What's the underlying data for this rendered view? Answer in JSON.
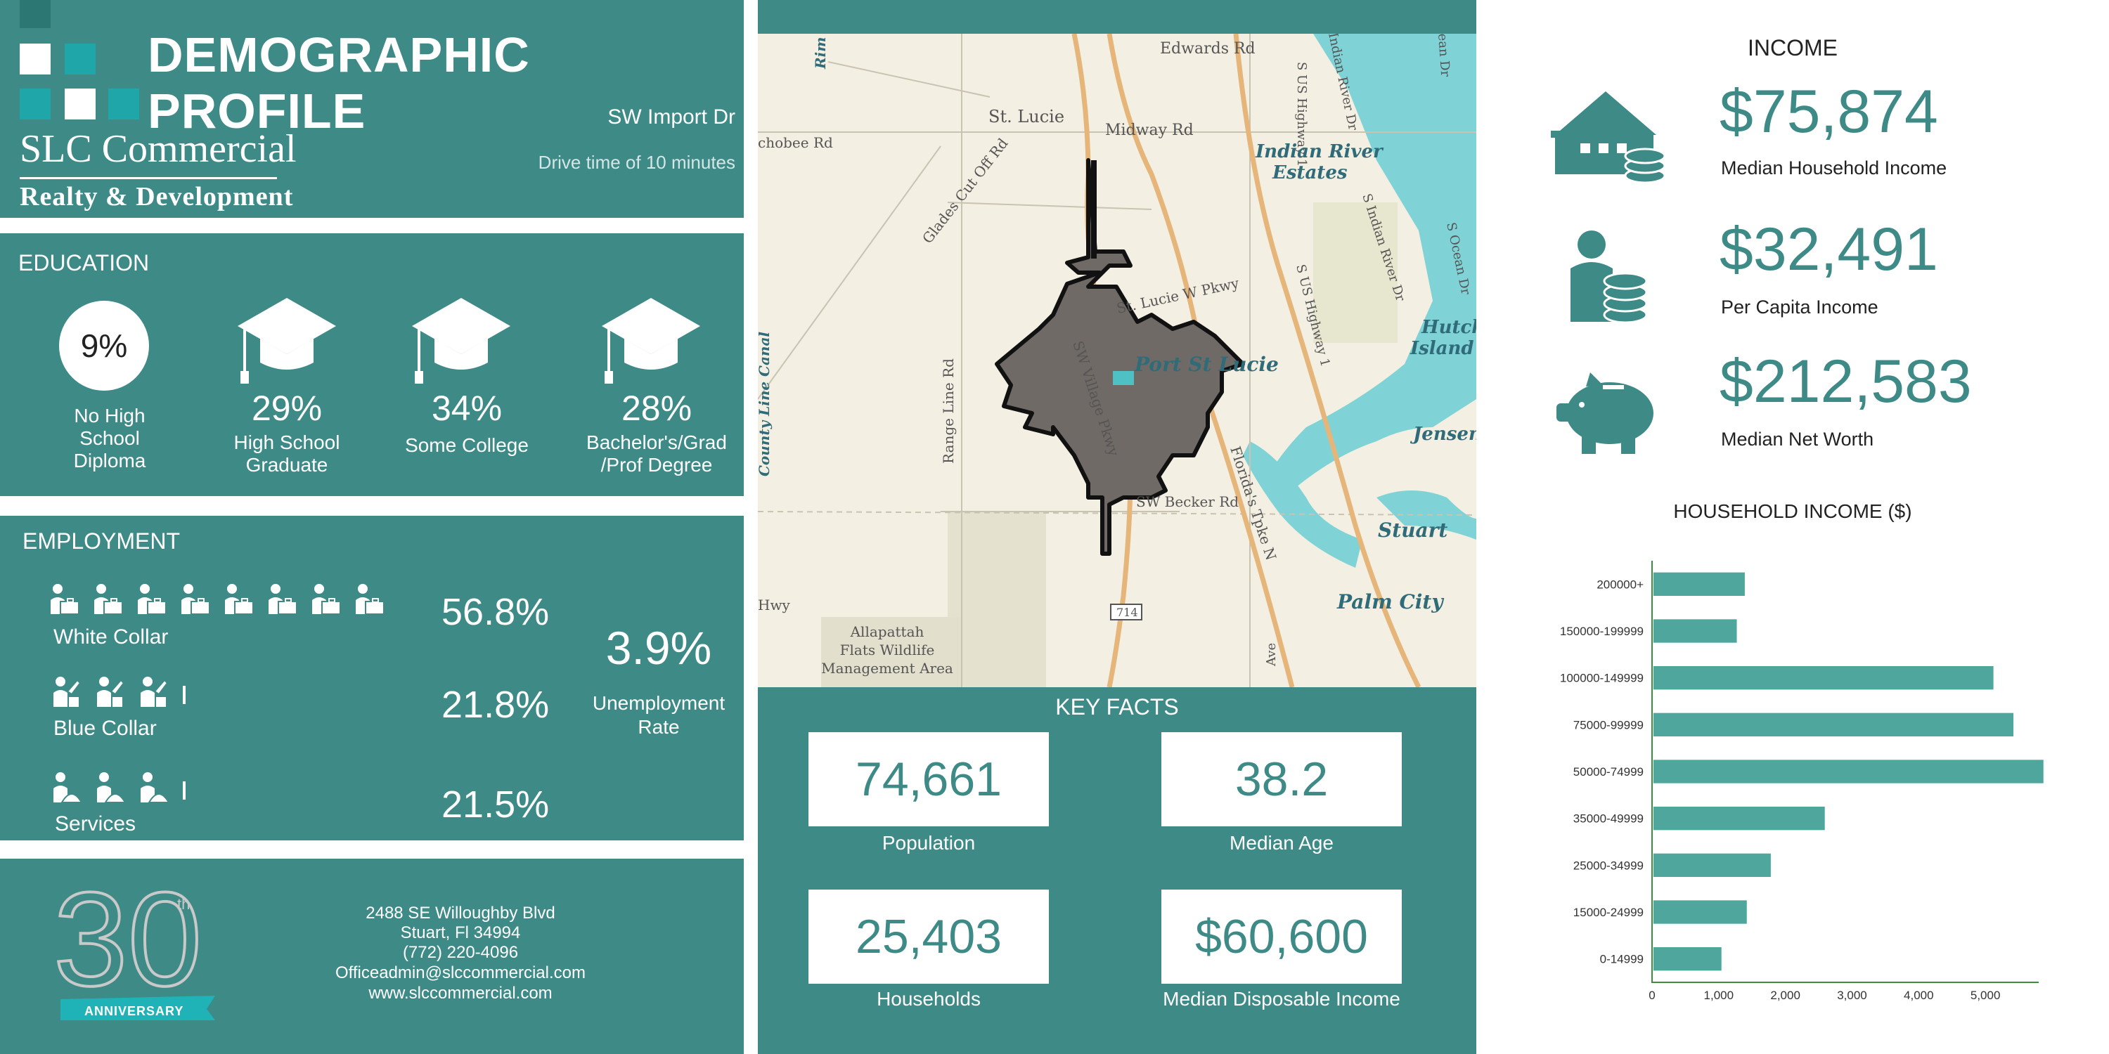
{
  "header": {
    "title": "DEMOGRAPHIC PROFILE",
    "address": "SW Import Dr",
    "drive_time": "Drive time of 10 minutes",
    "brand_name": "SLC Commercial",
    "brand_sub": "Realty & Development"
  },
  "education": {
    "title": "EDUCATION",
    "items": [
      {
        "pct": "9%",
        "label_1": "No High",
        "label_2": "School",
        "label_3": "Diploma"
      },
      {
        "pct": "29%",
        "label_1": "High School",
        "label_2": "Graduate"
      },
      {
        "pct": "34%",
        "label_1": "Some College"
      },
      {
        "pct": "28%",
        "label_1": "Bachelor's/Grad",
        "label_2": "/Prof Degree"
      }
    ]
  },
  "employment": {
    "title": "EMPLOYMENT",
    "white_collar": {
      "label": "White Collar",
      "pct": "56.8%"
    },
    "blue_collar": {
      "label": "Blue Collar",
      "pct": "21.8%"
    },
    "services": {
      "label": "Services",
      "pct": "21.5%"
    },
    "unemployment": {
      "pct": "3.9%",
      "label_1": "Unemployment",
      "label_2": "Rate"
    }
  },
  "footer": {
    "street": "2488 SE Willoughby Blvd",
    "city": "Stuart, Fl 34994",
    "phone": "(772) 220-4096",
    "email": "Officeadmin@slccommercial.com",
    "web": "www.slccommercial.com",
    "anniv_number": "30",
    "anniv_sup": "th",
    "anniv_label": "ANNIVERSARY"
  },
  "map": {
    "labels": {
      "edwards": "Edwards Rd",
      "st_lucie": "St. Lucie",
      "midway": "Midway Rd",
      "okeechobee": "chobee Rd",
      "glades": "Glades Cut Off Rd",
      "indian_river_estates_1": "Indian River",
      "indian_river_estates_2": "Estates",
      "range_line": "Range Line Rd",
      "county_line": "County Line Canal",
      "port_st_lucie": "Port St Lucie",
      "becker": "SW Becker Rd",
      "floridas_tpke": "Florida's Tpke N",
      "hutch_1": "Hutch",
      "hutch_2": "Island S",
      "jensen": "Jensen B",
      "stuart": "Stuart",
      "palm_city": "Palm City",
      "allapattah_1": "Allapattah",
      "allapattah_2": "Flats Wildlife",
      "allapattah_3": "Management Area",
      "hwy": "Hwy",
      "route_714": "714",
      "us_hwy_1": "S US Highway 1",
      "us_hwy_1b": "S US Highway 1",
      "indian_river_dr": "S Indian River Dr",
      "indian_river_dr_top": "Indian River Dr",
      "ocean_dr": "S Ocean Dr",
      "village_pkwy": "SW Village Pkwy",
      "st_lucie_pkwy": "St. Lucie W Pkwy",
      "rim": "Rim",
      "ave": "Ave",
      "ocean_top": "ean Dr"
    }
  },
  "key_facts": {
    "title": "KEY FACTS",
    "population": {
      "value": "74,661",
      "label": "Population"
    },
    "median_age": {
      "value": "38.2",
      "label": "Median Age"
    },
    "households": {
      "value": "25,403",
      "label": "Households"
    },
    "disposable": {
      "value": "$60,600",
      "label": "Median Disposable Income"
    }
  },
  "income": {
    "title": "INCOME",
    "median_household": {
      "value": "$75,874",
      "label": "Median Household Income"
    },
    "per_capita": {
      "value": "$32,491",
      "label": "Per Capita Income"
    },
    "net_worth": {
      "value": "$212,583",
      "label": "Median Net Worth"
    }
  },
  "chart_data": {
    "type": "bar",
    "orientation": "horizontal",
    "title": "HOUSEHOLD INCOME ($)",
    "categories": [
      "200000+",
      "150000-199999",
      "100000-149999",
      "75000-99999",
      "50000-74999",
      "35000-49999",
      "25000-34999",
      "15000-24999",
      "0-14999"
    ],
    "values": [
      1370,
      1250,
      5100,
      5400,
      5850,
      2570,
      1760,
      1400,
      1020
    ],
    "xlim": [
      0,
      5800
    ],
    "xticks": [
      "0",
      "1,000",
      "2,000",
      "3,000",
      "4,000",
      "5,000"
    ],
    "bar_color": "#4fa69d",
    "axis_color": "#3c8f3a"
  },
  "colors": {
    "teal": "#3d8a87",
    "light_teal": "#58aaa3"
  }
}
